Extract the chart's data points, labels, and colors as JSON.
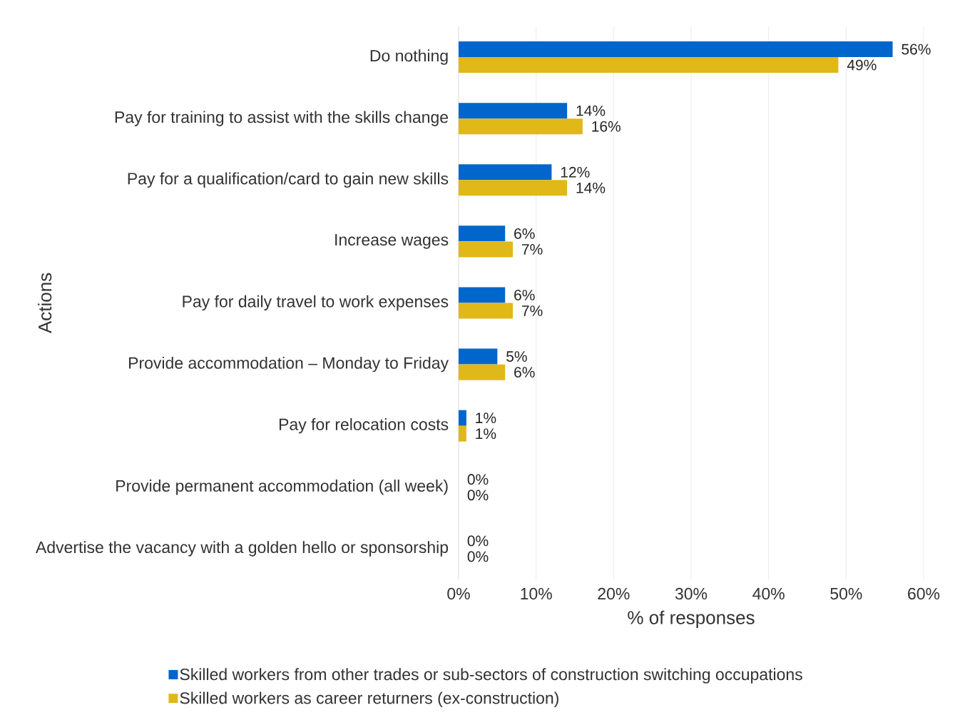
{
  "chart_data": {
    "type": "bar",
    "orientation": "horizontal",
    "xlabel": "% of responses",
    "ylabel": "Actions",
    "categories": [
      "Do nothing",
      "Pay for training to assist with the skills change",
      "Pay for a qualification/card to gain new skills",
      "Increase wages",
      "Pay for daily travel to work expenses",
      "Provide accommodation – Monday to Friday",
      "Pay for relocation costs",
      "Provide permanent accommodation (all week)",
      "Advertise the vacancy with a golden hello or sponsorship"
    ],
    "series": [
      {
        "name": "Skilled workers from other trades or sub-sectors of construction switching occupations",
        "color": "#0066cc",
        "values": [
          56,
          14,
          12,
          6,
          6,
          5,
          1,
          0,
          0
        ],
        "value_labels": [
          "56%",
          "14%",
          "12%",
          "6%",
          "6%",
          "5%",
          "1%",
          "0%",
          "0%"
        ]
      },
      {
        "name": "Skilled workers as career returners (ex-construction)",
        "color": "#e0b818",
        "values": [
          49,
          16,
          14,
          7,
          7,
          6,
          1,
          0,
          0
        ],
        "value_labels": [
          "49%",
          "16%",
          "14%",
          "7%",
          "7%",
          "6%",
          "1%",
          "0%",
          "0%"
        ]
      }
    ],
    "xlim": [
      0,
      60
    ],
    "xticks": [
      {
        "value": 0,
        "label": "0%"
      },
      {
        "value": 10,
        "label": "10%"
      },
      {
        "value": 20,
        "label": "20%"
      },
      {
        "value": 30,
        "label": "30%"
      },
      {
        "value": 40,
        "label": "40%"
      },
      {
        "value": 50,
        "label": "50%"
      },
      {
        "value": 60,
        "label": "60%"
      }
    ],
    "grid": "x",
    "legend": "bottom"
  }
}
